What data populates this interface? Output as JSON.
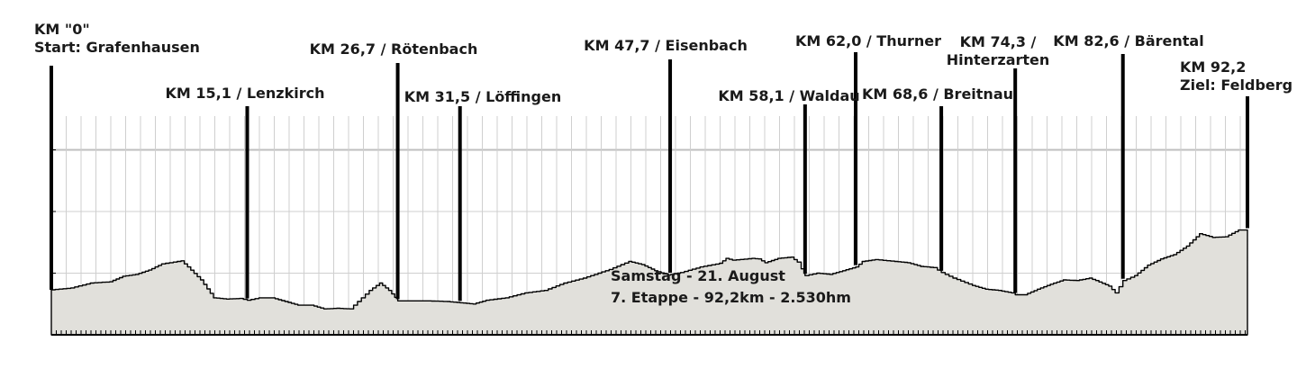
{
  "chart_data": {
    "type": "area",
    "title": "",
    "xlabel": "",
    "ylabel": "",
    "xlim": [
      0,
      92.2
    ],
    "grid": true,
    "profile": {
      "x": [
        0,
        1.5,
        3,
        4.5,
        5.5,
        6.5,
        7.5,
        8.5,
        10,
        10.5,
        11.5,
        12.5,
        13.5,
        14.5,
        15.1,
        16,
        17,
        18,
        19,
        20,
        21,
        22,
        23,
        24.5,
        25.3,
        26,
        26.7,
        27.5,
        29,
        30.5,
        31.5,
        32.5,
        33.5,
        35,
        36.5,
        38,
        39.5,
        41,
        43,
        44.5,
        45.5,
        46.5,
        47.5,
        48.5,
        50,
        51.5,
        52,
        52.5,
        54,
        54.5,
        55,
        56,
        57,
        57.5,
        58.1,
        59,
        60,
        61,
        62,
        62.5,
        63.5,
        65,
        66,
        67,
        68,
        68.6,
        69.5,
        71,
        72,
        73,
        74,
        74.3,
        75,
        76,
        77,
        78,
        79,
        80,
        80.5,
        81.5,
        82,
        82.6,
        83.5,
        84.5,
        85.5,
        86.5,
        87.5,
        88.5,
        89.5,
        90.5,
        91.5,
        92.2
      ],
      "y": [
        0.73,
        0.76,
        0.84,
        0.86,
        0.95,
        0.98,
        1.05,
        1.15,
        1.2,
        1.1,
        0.89,
        0.6,
        0.58,
        0.59,
        0.56,
        0.6,
        0.6,
        0.54,
        0.48,
        0.48,
        0.42,
        0.43,
        0.42,
        0.72,
        0.84,
        0.72,
        0.55,
        0.55,
        0.55,
        0.54,
        0.52,
        0.5,
        0.56,
        0.6,
        0.68,
        0.72,
        0.84,
        0.92,
        1.06,
        1.19,
        1.14,
        1.04,
        0.97,
        1.01,
        1.1,
        1.16,
        1.24,
        1.21,
        1.24,
        1.23,
        1.17,
        1.24,
        1.26,
        1.18,
        0.96,
        1.0,
        0.98,
        1.04,
        1.1,
        1.19,
        1.22,
        1.19,
        1.17,
        1.11,
        1.09,
        1.01,
        0.92,
        0.8,
        0.74,
        0.72,
        0.68,
        0.65,
        0.65,
        0.74,
        0.82,
        0.89,
        0.88,
        0.92,
        0.88,
        0.79,
        0.68,
        0.88,
        0.96,
        1.13,
        1.23,
        1.3,
        1.44,
        1.64,
        1.58,
        1.59,
        1.7,
        1.7
      ]
    },
    "waypoints": [
      {
        "km": 0,
        "lines": [
          "KM \"0\"",
          "Start: Grafenhausen"
        ]
      },
      {
        "km": 15.1,
        "lines": [
          "KM 15,1 / Lenzkirch"
        ]
      },
      {
        "km": 26.7,
        "lines": [
          "KM 26,7 / Rötenbach"
        ]
      },
      {
        "km": 31.5,
        "lines": [
          "KM 31,5 / Löffingen"
        ]
      },
      {
        "km": 47.7,
        "lines": [
          "KM 47,7 / Eisenbach"
        ]
      },
      {
        "km": 58.1,
        "lines": [
          "KM 58,1 / Waldau"
        ]
      },
      {
        "km": 62.0,
        "lines": [
          "KM 62,0 / Thurner"
        ]
      },
      {
        "km": 68.6,
        "lines": [
          "KM 68,6 / Breitnau"
        ]
      },
      {
        "km": 74.3,
        "lines": [
          "KM 74,3 /",
          "Hinterzarten"
        ]
      },
      {
        "km": 82.6,
        "lines": [
          "KM 82,6 / Bärental"
        ]
      },
      {
        "km": 92.2,
        "lines": [
          "KM 92,2",
          "Ziel: Feldberg"
        ]
      }
    ],
    "annotation": [
      "Samstag - 21. August",
      "7. Etappe - 92,2km - 2.530hm"
    ],
    "colors": {
      "fill": "#e1e0db",
      "outline": "#000000",
      "grid": "#cfcfcf",
      "gridline_major": "#bfbfbf",
      "marker": "#000000",
      "text": "#1a1a1a"
    }
  }
}
